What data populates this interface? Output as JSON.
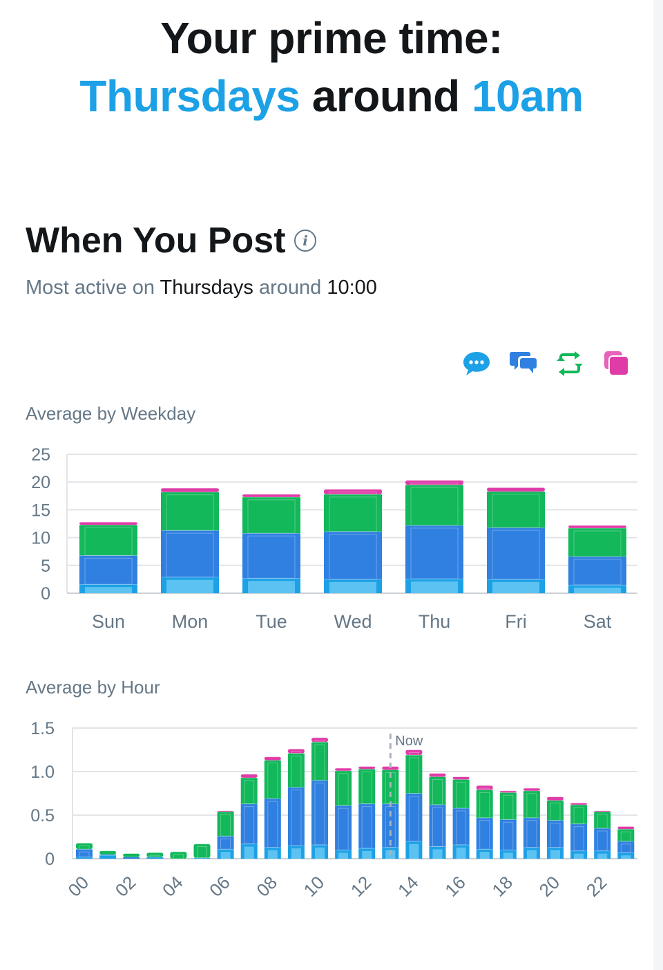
{
  "hero": {
    "line1": "Your prime time:",
    "day": "Thursdays",
    "around": " around ",
    "time": "10am"
  },
  "section": {
    "title": "When You Post",
    "info_icon": "info-icon",
    "subtitle_pre": "Most active on ",
    "subtitle_day": "Thursdays",
    "subtitle_mid": " around ",
    "subtitle_time": "10:00"
  },
  "legend": [
    {
      "icon": "reply-bubble-icon",
      "color": "#1da1e6"
    },
    {
      "icon": "conversation-icon",
      "color": "#2f80e0"
    },
    {
      "icon": "repost-icon",
      "color": "#12b85a"
    },
    {
      "icon": "quote-icon",
      "color": "#e03ca8"
    }
  ],
  "chart_data": [
    {
      "type": "bar",
      "stacked": true,
      "title": "Average by Weekday",
      "categories": [
        "Sun",
        "Mon",
        "Tue",
        "Wed",
        "Thu",
        "Fri",
        "Sat"
      ],
      "ylim": [
        0,
        25
      ],
      "yticks": [
        "0",
        "5",
        "10",
        "15",
        "20",
        "25"
      ],
      "grid": true,
      "series": [
        {
          "name": "replies",
          "color": "#1da1e6",
          "values": [
            1.6,
            2.9,
            2.7,
            2.5,
            2.6,
            2.5,
            1.5
          ]
        },
        {
          "name": "conversations",
          "color": "#2f80e0",
          "values": [
            5.2,
            8.4,
            8.1,
            8.6,
            9.6,
            9.3,
            5.1
          ]
        },
        {
          "name": "reposts",
          "color": "#12b85a",
          "values": [
            5.5,
            6.9,
            6.5,
            6.7,
            7.3,
            6.5,
            5.1
          ]
        },
        {
          "name": "quotes",
          "color": "#e03ca8",
          "values": [
            0.5,
            0.7,
            0.5,
            0.9,
            0.8,
            0.7,
            0.5
          ]
        }
      ]
    },
    {
      "type": "bar",
      "stacked": true,
      "title": "Average by Hour",
      "categories": [
        "00",
        "01",
        "02",
        "03",
        "04",
        "05",
        "06",
        "07",
        "08",
        "09",
        "10",
        "11",
        "12",
        "13",
        "14",
        "15",
        "16",
        "17",
        "18",
        "19",
        "20",
        "21",
        "22",
        "23"
      ],
      "xtick_labels": [
        "00",
        "02",
        "04",
        "06",
        "08",
        "10",
        "12",
        "14",
        "16",
        "18",
        "20",
        "22"
      ],
      "ylim": [
        0,
        1.5
      ],
      "yticks": [
        "0",
        "0.5",
        "1.0",
        "1.5"
      ],
      "grid": true,
      "marker": {
        "label": "Now",
        "hour": 13
      },
      "series": [
        {
          "name": "replies",
          "color": "#1da1e6",
          "values": [
            0.02,
            0.04,
            0,
            0.02,
            0,
            0.01,
            0.11,
            0.17,
            0.13,
            0.15,
            0.16,
            0.1,
            0.12,
            0.13,
            0.2,
            0.14,
            0.16,
            0.11,
            0.1,
            0.13,
            0.13,
            0.09,
            0.09,
            0.07
          ]
        },
        {
          "name": "conversations",
          "color": "#2f80e0",
          "values": [
            0.09,
            0.01,
            0.02,
            0,
            0,
            0,
            0.15,
            0.46,
            0.56,
            0.67,
            0.74,
            0.51,
            0.51,
            0.5,
            0.55,
            0.48,
            0.42,
            0.36,
            0.35,
            0.34,
            0.31,
            0.31,
            0.26,
            0.13
          ]
        },
        {
          "name": "reposts",
          "color": "#12b85a",
          "values": [
            0.07,
            0.04,
            0.04,
            0.05,
            0.08,
            0.16,
            0.28,
            0.3,
            0.44,
            0.39,
            0.44,
            0.4,
            0.4,
            0.39,
            0.44,
            0.32,
            0.33,
            0.32,
            0.31,
            0.31,
            0.23,
            0.22,
            0.19,
            0.14
          ]
        },
        {
          "name": "quotes",
          "color": "#e03ca8",
          "values": [
            0,
            0,
            0,
            0,
            0,
            0,
            0.01,
            0.04,
            0.04,
            0.05,
            0.05,
            0.03,
            0.03,
            0.04,
            0.06,
            0.04,
            0.03,
            0.05,
            0.02,
            0.03,
            0.04,
            0.02,
            0.01,
            0.03
          ]
        }
      ]
    }
  ]
}
